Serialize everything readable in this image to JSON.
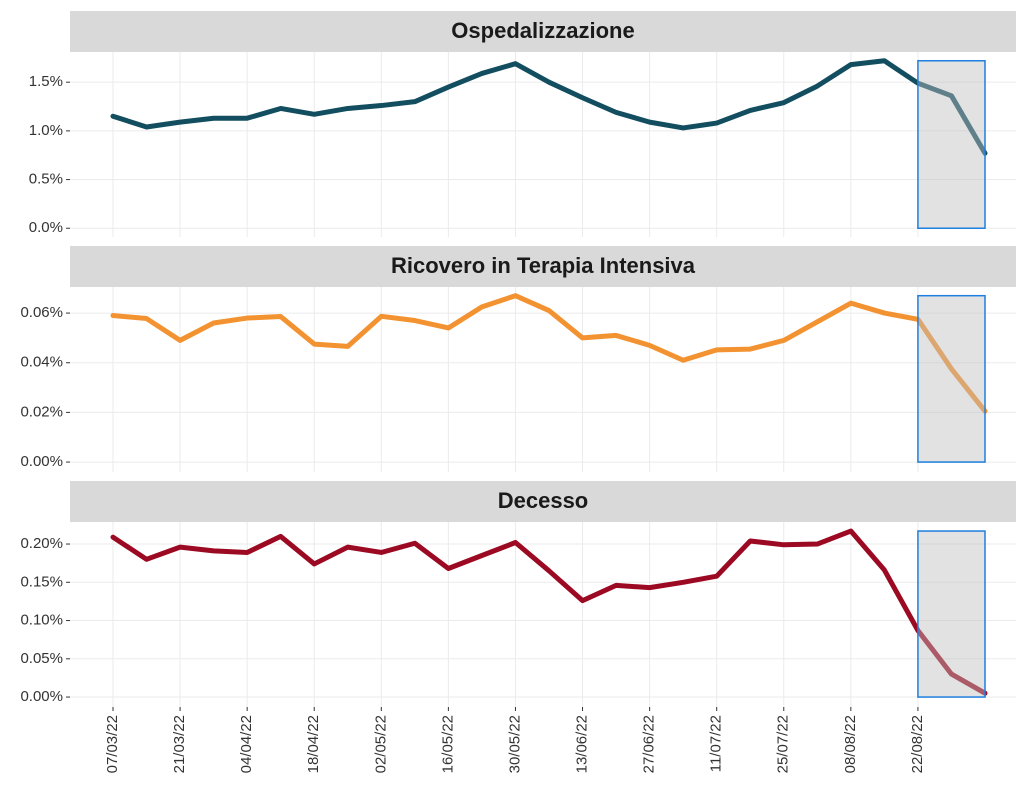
{
  "chart_data": {
    "type": "line",
    "categories": [
      "07/03/22",
      null,
      "21/03/22",
      null,
      "04/04/22",
      null,
      "18/04/22",
      null,
      "02/05/22",
      null,
      "16/05/22",
      null,
      "30/05/22",
      null,
      "13/06/22",
      null,
      "27/06/22",
      null,
      "11/07/22",
      null,
      "25/07/22",
      null,
      "08/08/22",
      null,
      "22/08/22",
      null,
      null
    ],
    "grid": true,
    "highlight": {
      "start": "22/08/22",
      "color": "#1e7fe0"
    },
    "panels": [
      {
        "title": "Ospedalizzazione",
        "color": "#124e5f",
        "ylim": [
          -0.09,
          1.81
        ],
        "yticks": [
          {
            "value": 0,
            "label": "0.0%"
          },
          {
            "value": 0.5,
            "label": "0.5%"
          },
          {
            "value": 1,
            "label": "1.0%"
          },
          {
            "value": 1.5,
            "label": "1.5%"
          }
        ],
        "values": [
          1.15,
          1.04,
          1.09,
          1.13,
          1.13,
          1.23,
          1.17,
          1.23,
          1.26,
          1.3,
          1.45,
          1.59,
          1.69,
          1.5,
          1.34,
          1.19,
          1.09,
          1.03,
          1.08,
          1.21,
          1.29,
          1.46,
          1.68,
          1.72,
          1.49,
          1.36,
          0.77
        ]
      },
      {
        "title": "Ricovero in Terapia Intensiva",
        "color": "#f39230",
        "ylim": [
          -0.004,
          0.0705
        ],
        "yticks": [
          {
            "value": 0,
            "label": "0.00%"
          },
          {
            "value": 0.02,
            "label": "0.02%"
          },
          {
            "value": 0.04,
            "label": "0.04%"
          },
          {
            "value": 0.06,
            "label": "0.06%"
          }
        ],
        "values": [
          0.059,
          0.0578,
          0.049,
          0.056,
          0.058,
          0.0586,
          0.0475,
          0.0466,
          0.0587,
          0.057,
          0.054,
          0.0625,
          0.067,
          0.061,
          0.05,
          0.051,
          0.047,
          0.041,
          0.0452,
          0.0455,
          0.049,
          0.0565,
          0.064,
          0.06,
          0.0575,
          0.0375,
          0.0205
        ]
      },
      {
        "title": "Decesso",
        "color": "#9b0a22",
        "ylim": [
          -0.013,
          0.2288
        ],
        "yticks": [
          {
            "value": 0,
            "label": "0.00%"
          },
          {
            "value": 0.05,
            "label": "0.05%"
          },
          {
            "value": 0.1,
            "label": "0.10%"
          },
          {
            "value": 0.15,
            "label": "0.15%"
          },
          {
            "value": 0.2,
            "label": "0.20%"
          }
        ],
        "values": [
          0.209,
          0.18,
          0.196,
          0.191,
          0.189,
          0.21,
          0.174,
          0.196,
          0.189,
          0.201,
          0.168,
          0.185,
          0.202,
          0.165,
          0.126,
          0.146,
          0.143,
          0.15,
          0.158,
          0.204,
          0.199,
          0.2,
          0.217,
          0.166,
          0.087,
          0.03,
          0.005
        ]
      }
    ]
  }
}
